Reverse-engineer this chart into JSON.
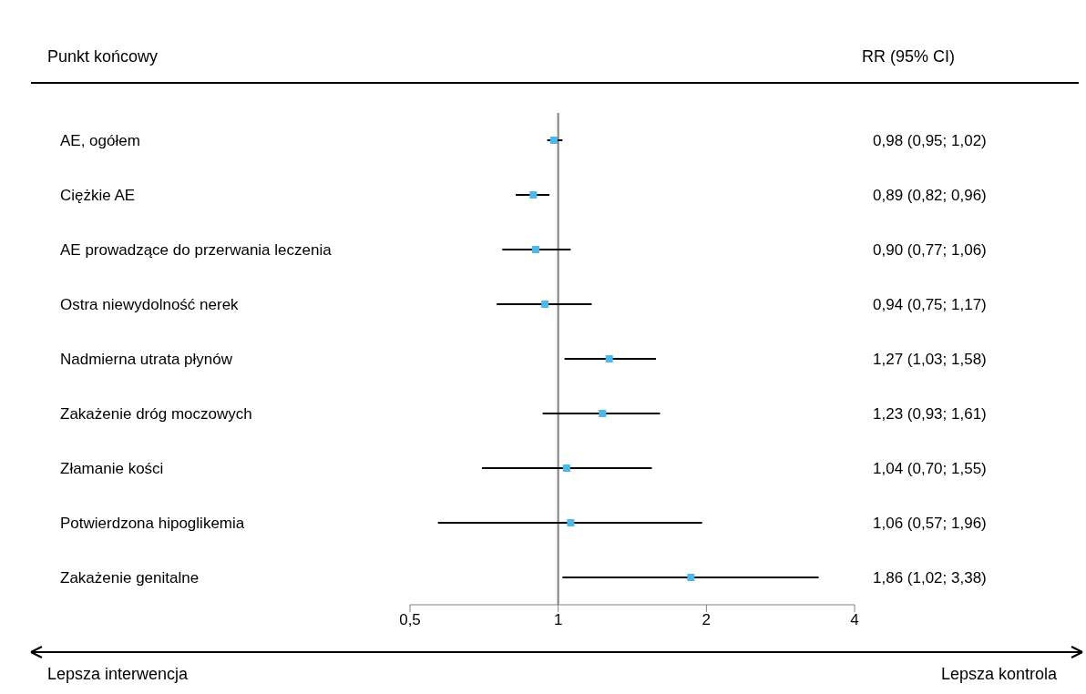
{
  "chart_data": {
    "type": "scatter",
    "orientation": "horizontal",
    "log": "x",
    "grid": false,
    "marker": "square",
    "categories": [
      "AE, ogółem",
      "Ciężkie AE",
      "AE prowadzące do przerwania leczenia",
      "Ostra niewydolność nerek",
      "Nadmierna utrata płynów",
      "Zakażenie dróg moczowych",
      "Złamanie kości",
      "Potwierdzona hipoglikemia",
      "Zakażenie genitalne"
    ],
    "series": [
      {
        "color": "#4db8ea",
        "values": [
          0.98,
          0.89,
          0.9,
          0.94,
          1.27,
          1.23,
          1.04,
          1.06,
          1.86
        ],
        "errors": [
          [
            0.95,
            1.02
          ],
          [
            0.82,
            0.96
          ],
          [
            0.77,
            1.06
          ],
          [
            0.75,
            1.17
          ],
          [
            1.03,
            1.58
          ],
          [
            0.93,
            1.61
          ],
          [
            0.7,
            1.55
          ],
          [
            0.57,
            1.96
          ],
          [
            1.02,
            3.38
          ]
        ],
        "value_labels": [
          "0,98 (0,95; 1,02)",
          "0,89 (0,82; 0,96)",
          "0,90 (0,77; 1,06)",
          "0,94 (0,75; 1,17)",
          "1,27 (1,03; 1,58)",
          "1,23 (0,93; 1,61)",
          "1,04 (0,70; 1,55)",
          "1,06 (0,57; 1,96)",
          "1,86 (1,02; 3,38)"
        ]
      }
    ],
    "xlim": [
      0.5,
      4
    ],
    "xticks": [
      {
        "value": 0.5,
        "label": "0,5"
      },
      1,
      2,
      4
    ],
    "ref_lines": [
      {
        "axis": "x",
        "value": 1,
        "color": "#808080"
      }
    ],
    "annotations": [
      "Punkt końcowy",
      "RR (95% CI)",
      "Lepsza interwencja",
      "Lepsza kontrola"
    ]
  }
}
